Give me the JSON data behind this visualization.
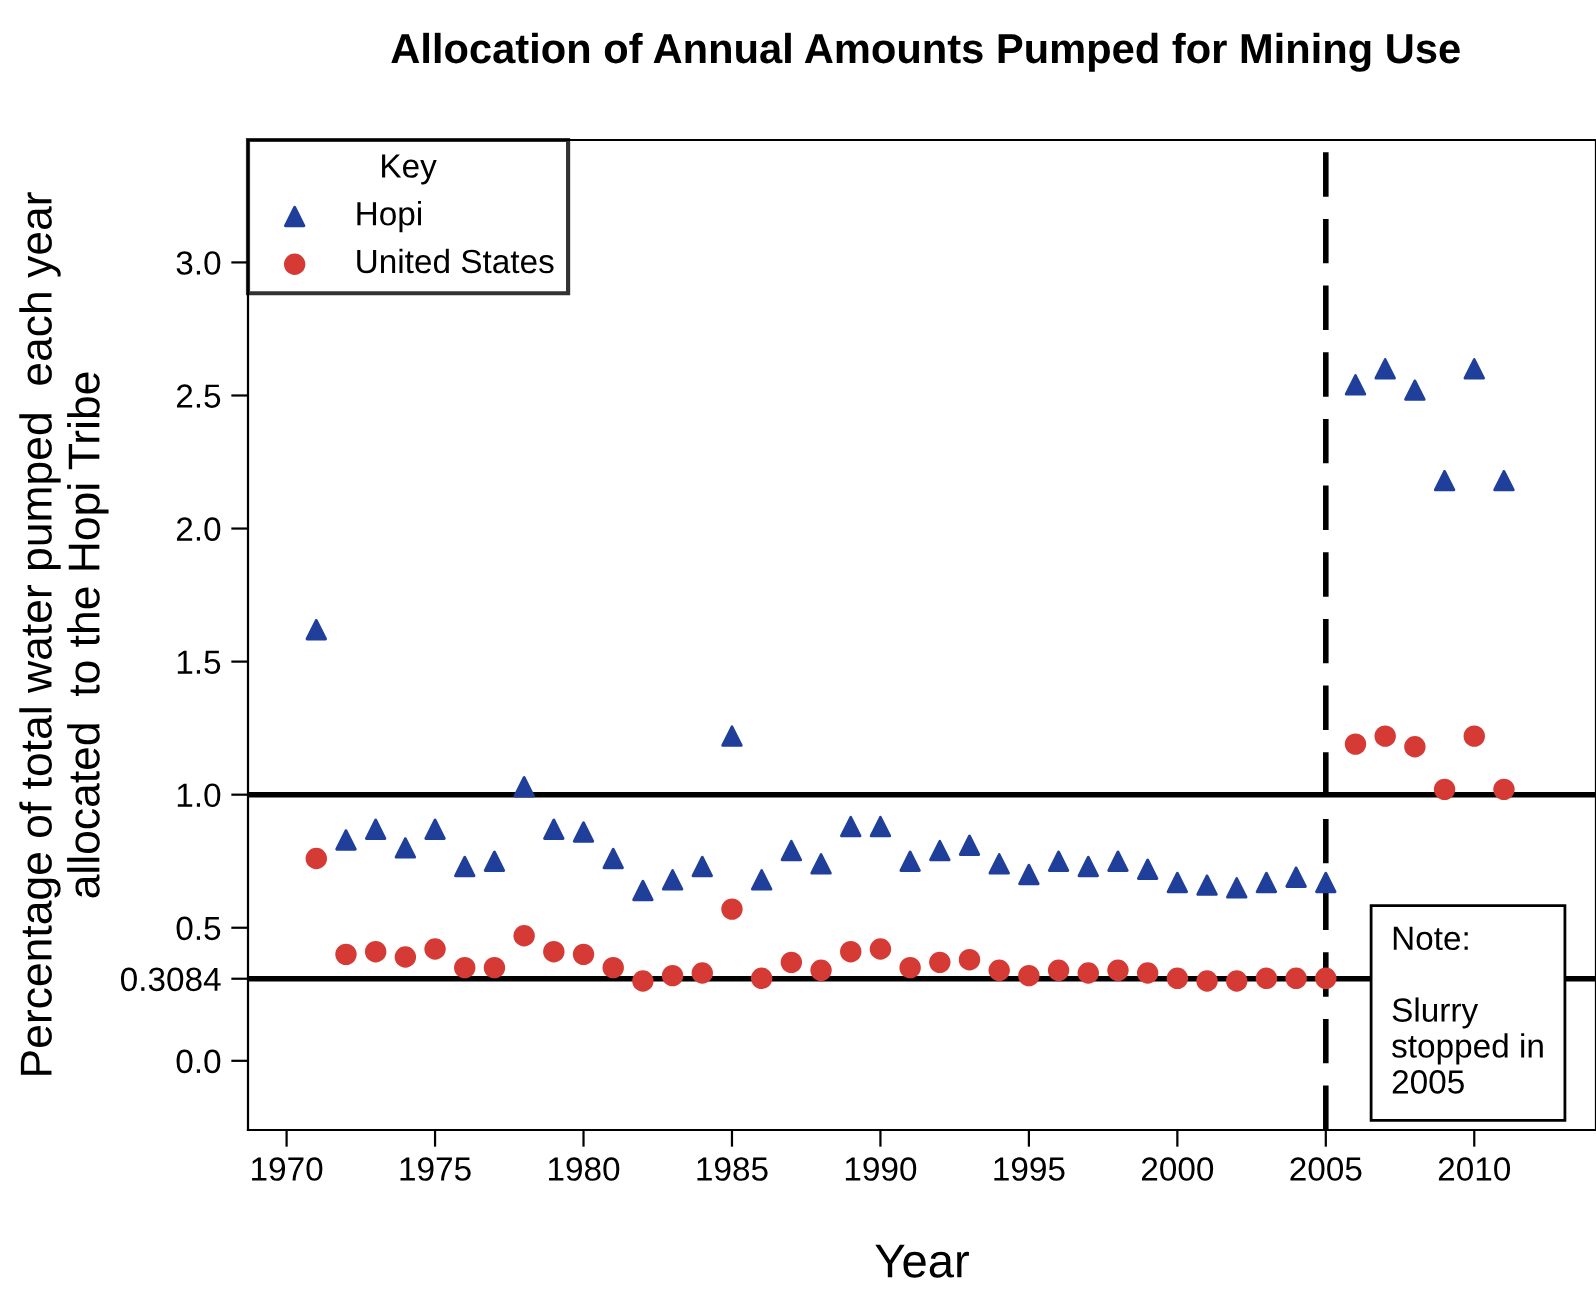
{
  "chart_data": {
    "type": "scatter",
    "title": "Allocation of Annual Amounts Pumped for Mining Use",
    "xlabel": "Year",
    "ylabel": "Percentage of total water pumped  each year\nallocated  to the Hopi Tribe",
    "legend_title": "Key",
    "legend": "top left",
    "grid": false,
    "x": [
      1971,
      1972,
      1973,
      1974,
      1975,
      1976,
      1977,
      1978,
      1979,
      1980,
      1981,
      1982,
      1983,
      1984,
      1985,
      1986,
      1987,
      1988,
      1989,
      1990,
      1991,
      1992,
      1993,
      1994,
      1995,
      1996,
      1997,
      1998,
      1999,
      2000,
      2001,
      2002,
      2003,
      2004,
      2005,
      2006,
      2007,
      2008,
      2009,
      2010,
      2011
    ],
    "series": [
      {
        "name": "Hopi",
        "color": "#1f3f9a",
        "marker": "triangle",
        "values": [
          1.62,
          0.83,
          0.87,
          0.8,
          0.87,
          0.73,
          0.75,
          1.03,
          0.87,
          0.86,
          0.76,
          0.64,
          0.68,
          0.73,
          1.22,
          0.68,
          0.79,
          0.74,
          0.88,
          0.88,
          0.75,
          0.79,
          0.81,
          0.74,
          0.7,
          0.75,
          0.73,
          0.75,
          0.72,
          0.67,
          0.66,
          0.65,
          0.67,
          0.69,
          0.67,
          2.54,
          2.6,
          2.52,
          2.18,
          2.6,
          2.18
        ]
      },
      {
        "name": "United States",
        "color": "#d63a35",
        "marker": "circle",
        "values": [
          0.76,
          0.4,
          0.41,
          0.39,
          0.42,
          0.35,
          0.35,
          0.47,
          0.41,
          0.4,
          0.35,
          0.3,
          0.32,
          0.33,
          0.57,
          0.31,
          0.37,
          0.34,
          0.41,
          0.42,
          0.35,
          0.37,
          0.38,
          0.34,
          0.32,
          0.34,
          0.33,
          0.34,
          0.33,
          0.31,
          0.3,
          0.3,
          0.31,
          0.31,
          0.31,
          1.19,
          1.22,
          1.18,
          1.02,
          1.22,
          1.02
        ]
      }
    ],
    "xlim": [
      1968.7,
      2014.1
    ],
    "xticks": [
      1970,
      1975,
      1980,
      1985,
      1990,
      1995,
      2000,
      2005,
      2010
    ],
    "ylim": [
      -0.26,
      3.46
    ],
    "yticks": [
      {
        "value": 0,
        "label": "0.0"
      },
      {
        "value": 0.3084,
        "label": "0.3084"
      },
      {
        "value": 0.5,
        "label": "0.5"
      },
      {
        "value": 1,
        "label": "1.0"
      },
      {
        "value": 1.5,
        "label": "1.5"
      },
      {
        "value": 2,
        "label": "2.0"
      },
      {
        "value": 2.5,
        "label": "2.5"
      },
      {
        "value": 3,
        "label": "3.0"
      }
    ],
    "ref_lines": [
      {
        "axis": "y",
        "value": 1.0,
        "color": "#000000",
        "line_style": "solid"
      },
      {
        "axis": "y",
        "value": 0.3084,
        "color": "#000000",
        "line_style": "solid"
      },
      {
        "axis": "x",
        "value": 2005,
        "color": "#000000",
        "line_style": "dashed"
      }
    ],
    "annotations": [
      "Note:\n\nSlurry\nstopped in\n2005"
    ]
  }
}
